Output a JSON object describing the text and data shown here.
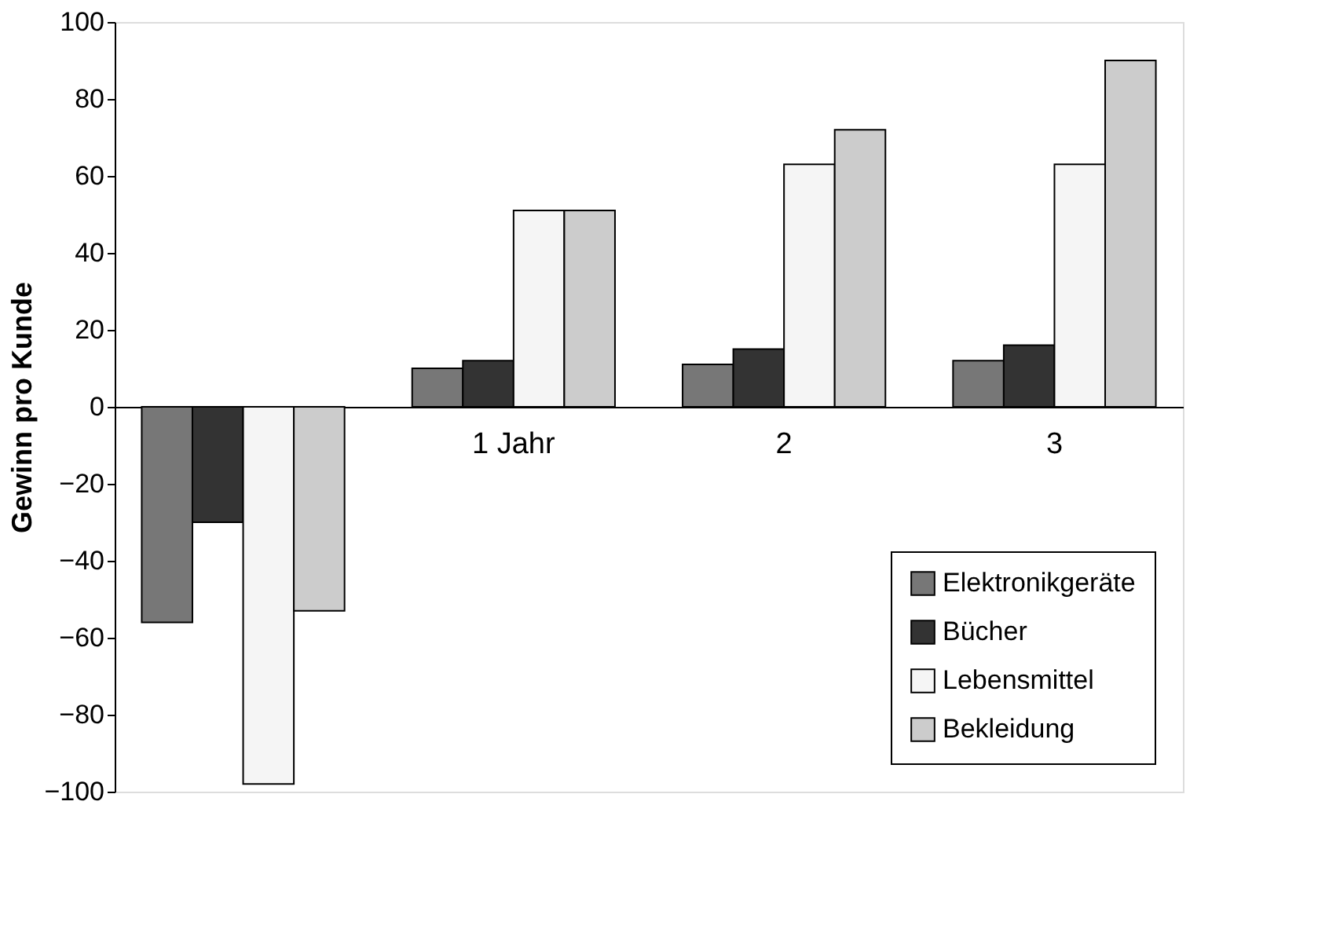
{
  "chart_data": {
    "type": "bar",
    "ylabel": "Gewinn pro Kunde",
    "categories": [
      null,
      "1 Jahr",
      "2",
      "3"
    ],
    "series": [
      {
        "name": "Elektronikgeräte",
        "color": "#777777",
        "values": [
          -56,
          10,
          11,
          12
        ]
      },
      {
        "name": "Bücher",
        "color": "#333333",
        "values": [
          -30,
          12,
          15,
          16
        ]
      },
      {
        "name": "Lebensmittel",
        "color": "#f5f5f5",
        "values": [
          -98,
          51,
          63,
          63
        ]
      },
      {
        "name": "Bekleidung",
        "color": "#cccccc",
        "values": [
          -53,
          51,
          72,
          90
        ]
      }
    ],
    "ylim": [
      -100,
      100
    ],
    "yticks": [
      -100,
      -80,
      -60,
      -40,
      -20,
      0,
      20,
      40,
      60,
      80,
      100
    ],
    "grid": false,
    "legend": "bottom right"
  }
}
